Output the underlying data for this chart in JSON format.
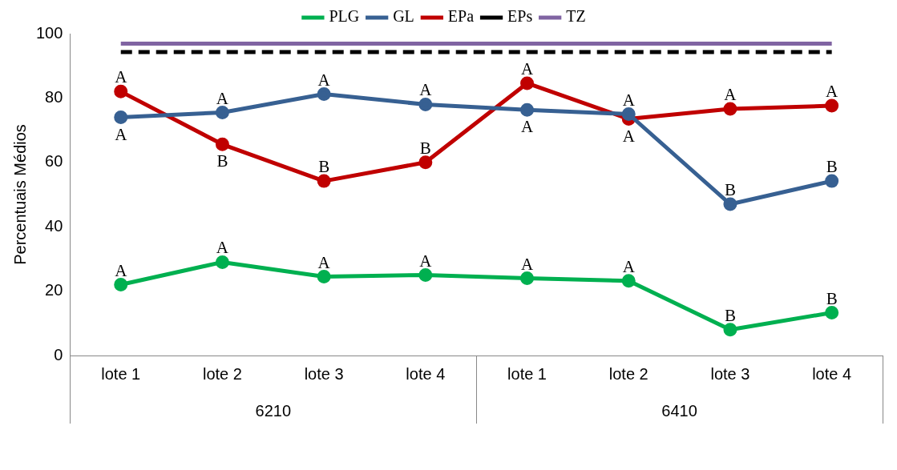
{
  "chart_data": {
    "type": "line",
    "ylabel": "Percentuais Médios",
    "categories": [
      "lote 1",
      "lote 2",
      "lote 3",
      "lote 4",
      "lote 1",
      "lote 2",
      "lote 3",
      "lote 4"
    ],
    "series": [
      {
        "name": "PLG",
        "color": "#00b050",
        "marker": "circle",
        "values": [
          22,
          29,
          24.5,
          25,
          24,
          23.2,
          8,
          13.3
        ],
        "value_labels": [
          "A",
          "A",
          "A",
          "A",
          "A",
          "A",
          "B",
          "B"
        ]
      },
      {
        "name": "GL",
        "color": "#376092",
        "marker": "circle",
        "values": [
          74,
          75.5,
          81.2,
          78,
          76.3,
          75,
          47,
          54.2
        ],
        "value_labels": [
          "A",
          "A",
          "A",
          "A",
          "A",
          "A",
          "B",
          "B"
        ]
      },
      {
        "name": "EPa",
        "color": "#c00000",
        "marker": "circle",
        "values": [
          82,
          65.6,
          54.2,
          60,
          84.6,
          73.5,
          76.6,
          77.6
        ],
        "value_labels": [
          "A",
          "B",
          "B",
          "B",
          "A",
          "A",
          "A",
          "A"
        ]
      },
      {
        "name": "EPs",
        "color": "#000000",
        "marker": "none",
        "line_style": "dashed",
        "values": [
          94.3,
          94.3,
          94.3,
          94.3,
          94.3,
          94.3,
          94.3,
          94.3
        ]
      },
      {
        "name": "TZ",
        "color": "#8064a2",
        "marker": "none",
        "values": [
          96.9,
          96.9,
          96.9,
          96.9,
          96.9,
          96.9,
          96.9,
          96.9
        ]
      }
    ],
    "annotations": [
      "6210",
      "6410"
    ],
    "ylim": [
      0,
      100
    ],
    "yticks": [
      0,
      20,
      40,
      60,
      80,
      100
    ],
    "grid": false,
    "legend": "top"
  }
}
